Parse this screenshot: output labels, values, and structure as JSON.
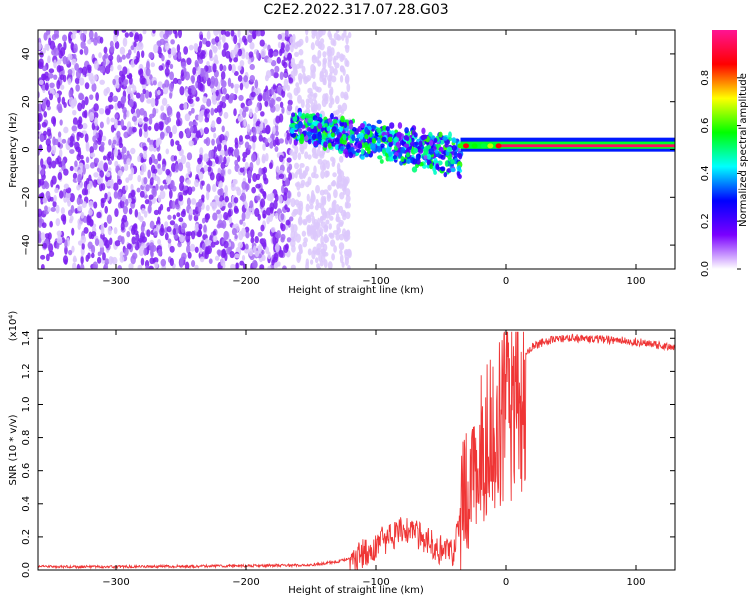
{
  "title": "C2E2.2022.317.07.28.G03",
  "colors": {
    "snr_line": "#ef3535",
    "axis": "#000000"
  },
  "chart_data": [
    {
      "type": "heatmap",
      "title": "C2E2.2022.317.07.28.G03",
      "xlabel": "Height of straight line (km)",
      "ylabel": "Frequency (Hz)",
      "xlim": [
        -360,
        130
      ],
      "ylim": [
        -50,
        50
      ],
      "x_ticks": [
        -300,
        -200,
        -100,
        0,
        100
      ],
      "y_ticks": [
        -40,
        -20,
        0,
        20,
        40
      ],
      "grid": false,
      "colorbar": {
        "label": "Normalized spectral amplitude",
        "range": [
          0.0,
          1.0
        ],
        "ticks": [
          0.0,
          0.2,
          0.4,
          0.6,
          0.8
        ],
        "colormap": [
          "#ffffff",
          "#7a00ff",
          "#0000ff",
          "#00ffff",
          "#00ff00",
          "#ffff00",
          "#ff0000",
          "#ff1493"
        ]
      },
      "regions": [
        {
          "name": "noise",
          "x_range": [
            -360,
            -130
          ],
          "f_range": [
            -50,
            50
          ],
          "amplitude": 0.15
        },
        {
          "name": "transition",
          "x_range": [
            -165,
            -35
          ],
          "center_freq": [
            10,
            -3
          ],
          "half_width": [
            7,
            10
          ],
          "amplitude": 0.5
        },
        {
          "name": "tone",
          "x_range": [
            -35,
            130
          ],
          "center_freq": 1.5,
          "half_width": 1.5,
          "amplitude": 0.95
        }
      ]
    },
    {
      "type": "line",
      "xlabel": "Height of straight line (km)",
      "ylabel": "SNR (10 * v/v)",
      "y_multiplier": "(x10⁴)",
      "xlim": [
        -360,
        130
      ],
      "ylim": [
        0.0,
        1.45
      ],
      "x_ticks": [
        -300,
        -200,
        -100,
        0,
        100
      ],
      "y_ticks": [
        0.0,
        0.2,
        0.4,
        0.6,
        0.8,
        1.0,
        1.2,
        1.4
      ],
      "y_tick_labels": [
        "0.0",
        "0.2",
        "0.4",
        "0.6",
        "0.8",
        "1.0",
        "1.2",
        "1.4"
      ],
      "grid": false,
      "series": [
        {
          "x": [
            -360,
            -300,
            -200,
            -150,
            -130,
            -115,
            -100,
            -85,
            -75,
            -65,
            -55,
            -45,
            -40,
            -35,
            -30,
            -25,
            -20,
            -15,
            -10,
            -5,
            0,
            5,
            10,
            20,
            30,
            40,
            60,
            80,
            100,
            115,
            130
          ],
          "values": [
            0.02,
            0.02,
            0.025,
            0.03,
            0.05,
            0.08,
            0.15,
            0.22,
            0.25,
            0.2,
            0.14,
            0.1,
            0.12,
            0.3,
            0.5,
            0.75,
            0.8,
            0.85,
            0.9,
            0.95,
            1.1,
            1.2,
            1.28,
            1.35,
            1.38,
            1.4,
            1.4,
            1.39,
            1.38,
            1.36,
            1.34
          ]
        }
      ]
    }
  ]
}
